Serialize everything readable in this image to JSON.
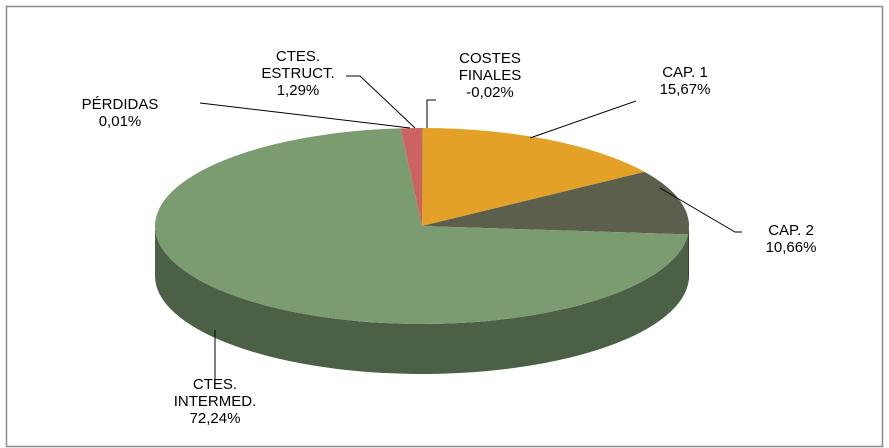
{
  "chart_data": {
    "type": "pie",
    "categories": [
      "CAP. 1",
      "CAP. 2",
      "CTES. INTERMED.",
      "PÉRDIDAS",
      "CTES. ESTRUCT.",
      "COSTES FINALES"
    ],
    "values": [
      15.67,
      10.66,
      72.24,
      0.01,
      1.29,
      -0.02
    ],
    "value_labels": [
      "15,67%",
      "10,66%",
      "72,24%",
      "0,01%",
      "1,29%",
      "-0,02%"
    ],
    "colors": [
      "#e3a227",
      "#5b5f4b",
      "#7b9b70",
      "#b04848",
      "#cd6262",
      "#8a8a8a"
    ]
  }
}
